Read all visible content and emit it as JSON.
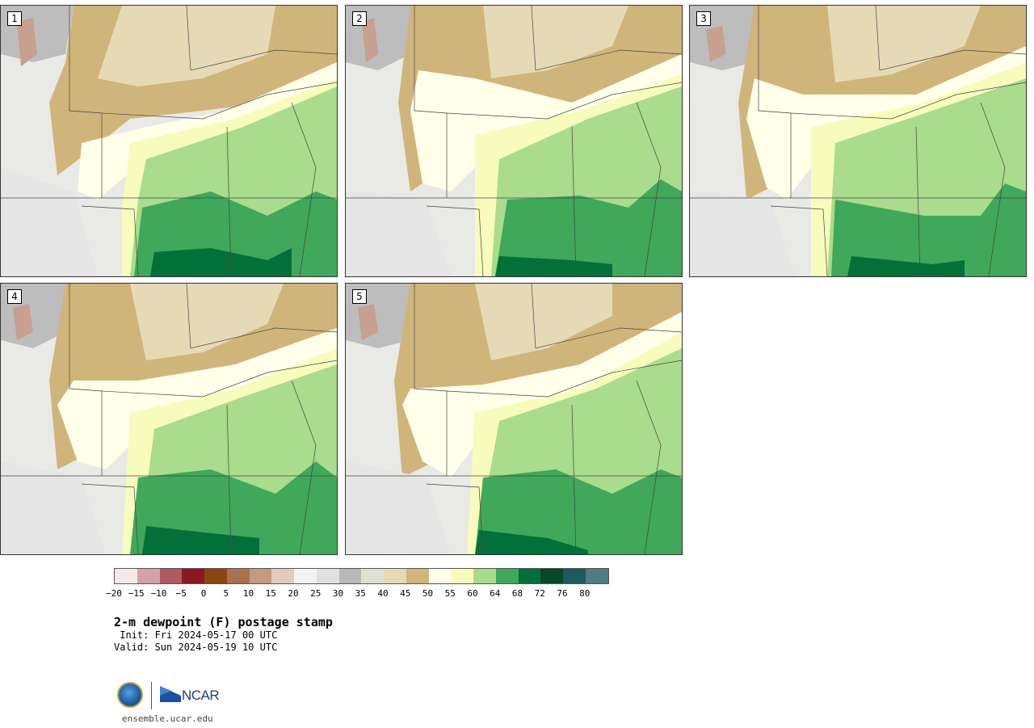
{
  "panels": [
    {
      "label": "1"
    },
    {
      "label": "2"
    },
    {
      "label": "3"
    },
    {
      "label": "4"
    },
    {
      "label": "5"
    }
  ],
  "colorbar": {
    "colors": [
      "#f5e9ea",
      "#d4a3a8",
      "#b0595f",
      "#8a1a22",
      "#8b4513",
      "#a9714e",
      "#c49a80",
      "#e3cbbb",
      "#f2f2f2",
      "#e0e0e0",
      "#b9b9b9",
      "#dfdfd3",
      "#e6dab6",
      "#d0b57b",
      "#ffffea",
      "#f7fcbd",
      "#a9dc8c",
      "#3fa85a",
      "#03703a",
      "#07472b",
      "#1f5a5a",
      "#4f7d83"
    ],
    "tick_labels": [
      "−20",
      "−15",
      "−10",
      "−5",
      "0",
      "5",
      "10",
      "15",
      "20",
      "25",
      "30",
      "35",
      "40",
      "45",
      "50",
      "55",
      "60",
      "64",
      "68",
      "72",
      "76",
      "80"
    ]
  },
  "title": "2-m dewpoint (F) postage stamp",
  "init_line": " Init: Fri 2024-05-17 00 UTC",
  "valid_line": "Valid: Sun 2024-05-19 10 UTC",
  "website": "ensemble.ucar.edu",
  "logos": {
    "nsf": "nsf-seal",
    "ncar": "NCAR"
  }
}
